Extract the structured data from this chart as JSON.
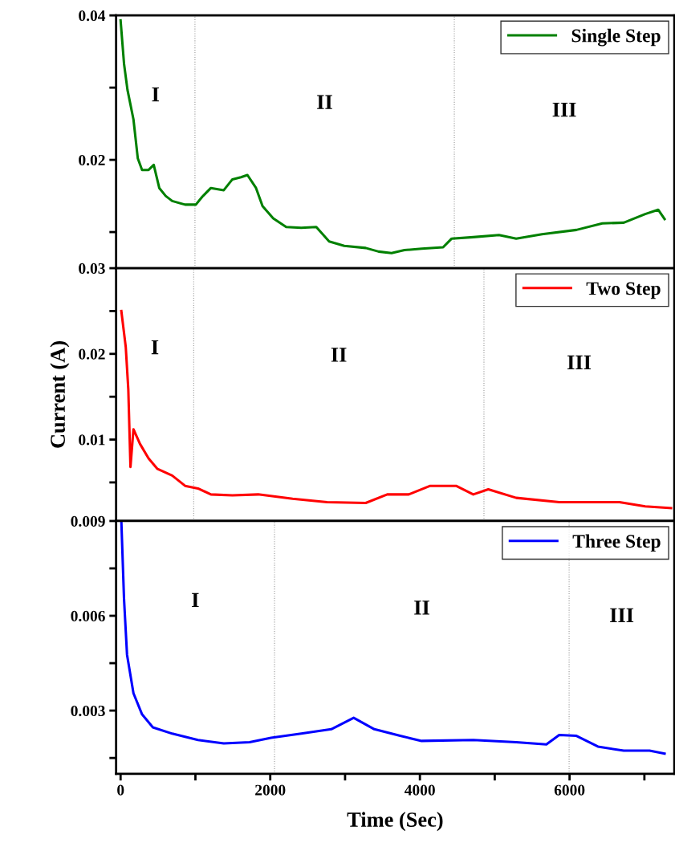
{
  "chart_data": [
    {
      "type": "line",
      "xlim": [
        -60,
        7400
      ],
      "ylim": [
        0.005,
        0.04
      ],
      "yticks": [
        0.04,
        {
          "value": 0.03,
          "label": null
        },
        0.02,
        {
          "value": 0.01,
          "label": null
        }
      ],
      "tick_labels": "y",
      "legend": "top right",
      "grid": false,
      "series": [
        {
          "name": "Single Step",
          "color": "#008000",
          "x": [
            0,
            46,
            92,
            172,
            230,
            287,
            374,
            443,
            517,
            603,
            690,
            862,
            1006,
            1092,
            1207,
            1379,
            1494,
            1609,
            1695,
            1810,
            1897,
            2040,
            2213,
            2414,
            2615,
            2787,
            2989,
            3276,
            3448,
            3621,
            3793,
            4023,
            4310,
            4425,
            4713,
            5057,
            5287,
            5632,
            6092,
            6437,
            6724,
            7011,
            7184,
            7270
          ],
          "values": [
            0.0393,
            0.0333,
            0.0297,
            0.0256,
            0.0202,
            0.0186,
            0.0186,
            0.0193,
            0.0161,
            0.015,
            0.0143,
            0.0138,
            0.0138,
            0.0149,
            0.0161,
            0.0158,
            0.0173,
            0.0176,
            0.0179,
            0.0161,
            0.0136,
            0.0119,
            0.0107,
            0.0106,
            0.0107,
            0.0087,
            0.0081,
            0.0078,
            0.0073,
            0.0071,
            0.0075,
            0.0077,
            0.0079,
            0.0091,
            0.0093,
            0.0096,
            0.0091,
            0.0097,
            0.0103,
            0.0112,
            0.0113,
            0.0125,
            0.0131,
            0.0118
          ]
        }
      ],
      "ref_lines": [
        {
          "axis": "x",
          "value": 994,
          "color": "#999999",
          "line_style": "dotted"
        },
        {
          "axis": "x",
          "value": 4460,
          "color": "#999999",
          "line_style": "dotted"
        }
      ],
      "annotations": [
        "I",
        "II",
        "III"
      ]
    },
    {
      "type": "line",
      "xlim": [
        -60,
        7400
      ],
      "ylim": [
        0.0005,
        0.03
      ],
      "yticks": [
        0.03,
        {
          "value": 0.025,
          "label": null
        },
        0.02,
        {
          "value": 0.015,
          "label": null
        },
        0.01,
        {
          "value": 0.005,
          "label": null
        }
      ],
      "tick_labels": "y",
      "legend": "top right",
      "grid": false,
      "ylabel": "Current (A)",
      "series": [
        {
          "name": "Two Step",
          "color": "#ff0000",
          "x": [
            10,
            69,
            103,
            132,
            172,
            259,
            374,
            489,
            690,
            862,
            1034,
            1207,
            1494,
            1839,
            2299,
            2759,
            3276,
            3563,
            3851,
            4138,
            4483,
            4713,
            4914,
            5287,
            5862,
            6667,
            7011,
            7356
          ],
          "values": [
            0.025,
            0.0208,
            0.0159,
            0.0068,
            0.0112,
            0.0095,
            0.0078,
            0.0066,
            0.0058,
            0.0046,
            0.0043,
            0.0036,
            0.0035,
            0.0036,
            0.0031,
            0.0027,
            0.0026,
            0.0036,
            0.0036,
            0.0046,
            0.0046,
            0.0036,
            0.0042,
            0.0032,
            0.0027,
            0.0027,
            0.0022,
            0.002
          ]
        }
      ],
      "ref_lines": [
        {
          "axis": "x",
          "value": 977,
          "color": "#999999",
          "line_style": "dotted"
        },
        {
          "axis": "x",
          "value": 4856,
          "color": "#999999",
          "line_style": "dotted"
        }
      ],
      "annotations": [
        "I",
        "II",
        "III"
      ]
    },
    {
      "type": "line",
      "xlim": [
        -60,
        7400
      ],
      "ylim": [
        0.001,
        0.009
      ],
      "yticks": [
        0.009,
        {
          "value": 0.0075,
          "label": null
        },
        0.006,
        {
          "value": 0.0045,
          "label": null
        },
        0.003,
        {
          "value": 0.0015,
          "label": null
        }
      ],
      "xticks": [
        0,
        {
          "value": 1000,
          "label": null
        },
        2000,
        {
          "value": 3000,
          "label": null
        },
        4000,
        {
          "value": 5000,
          "label": null
        },
        6000,
        {
          "value": 7000,
          "label": null
        }
      ],
      "legend": "top right",
      "grid": false,
      "xlabel": "Time (Sec)",
      "series": [
        {
          "name": "Three Step",
          "color": "#0000ff",
          "x": [
            10,
            46,
            86,
            172,
            287,
            431,
            690,
            1034,
            1379,
            1724,
            2011,
            2414,
            2816,
            3115,
            3391,
            3736,
            4023,
            4713,
            5287,
            5690,
            5862,
            6092,
            6379,
            6724,
            7069,
            7270
          ],
          "values": [
            0.009,
            0.00653,
            0.00477,
            0.00355,
            0.00288,
            0.00247,
            0.00227,
            0.00207,
            0.00196,
            0.002,
            0.00214,
            0.00227,
            0.00241,
            0.00277,
            0.00241,
            0.0022,
            0.00204,
            0.00207,
            0.002,
            0.00193,
            0.00223,
            0.0022,
            0.00186,
            0.00173,
            0.00173,
            0.00164
          ]
        }
      ],
      "ref_lines": [
        {
          "axis": "x",
          "value": 2057,
          "color": "#999999",
          "line_style": "dotted"
        },
        {
          "axis": "x",
          "value": 5994,
          "color": "#999999",
          "line_style": "dotted"
        }
      ],
      "annotations": [
        "I",
        "II",
        "III"
      ]
    }
  ]
}
